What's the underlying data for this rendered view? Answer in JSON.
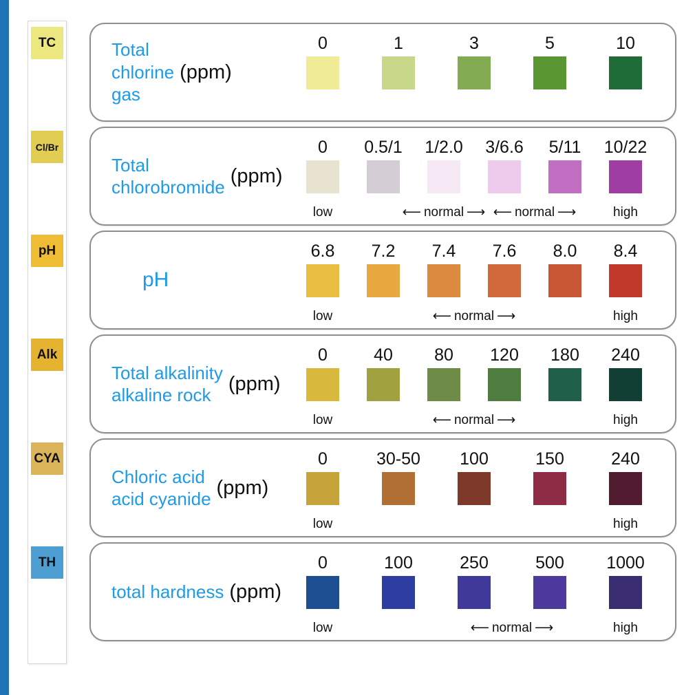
{
  "page": {
    "background": "#ffffff",
    "edge_bar_color": "#2173b8",
    "accent_text_color": "#1e9be8"
  },
  "strip": {
    "pads": [
      {
        "label": "TC",
        "color": "#ece77e"
      },
      {
        "label": "Cl/Br",
        "color": "#e0cd52"
      },
      {
        "label": "pH",
        "color": "#eebd33"
      },
      {
        "label": "Alk",
        "color": "#e6b331"
      },
      {
        "label": "CYA",
        "color": "#dbb45a"
      },
      {
        "label": "TH",
        "color": "#4d9fd3"
      }
    ]
  },
  "chart_data": {
    "type": "table",
    "panels": [
      {
        "code": "TC",
        "title_lines": [
          "Total",
          "chlorine",
          "gas"
        ],
        "unit": "(ppm)",
        "swatches": [
          {
            "value": "0",
            "color": "#f0eb97"
          },
          {
            "value": "1",
            "color": "#c8d88b"
          },
          {
            "value": "3",
            "color": "#83ab52"
          },
          {
            "value": "5",
            "color": "#5a9733"
          },
          {
            "value": "10",
            "color": "#206c38"
          }
        ],
        "footnotes": []
      },
      {
        "code": "Cl/Br",
        "title_lines": [
          "Total",
          "chlorobromide"
        ],
        "unit": "(ppm)",
        "swatches": [
          {
            "value": "0",
            "color": "#e8e3cf"
          },
          {
            "value": "0.5/1",
            "color": "#d5cdd5"
          },
          {
            "value": "1/2.0",
            "color": "#f6e9f5"
          },
          {
            "value": "3/6.6",
            "color": "#eecaec"
          },
          {
            "value": "5/11",
            "color": "#c16fc2"
          },
          {
            "value": "10/22",
            "color": "#9f3da2"
          }
        ],
        "footnotes": [
          {
            "text": "low",
            "cols": [
              0
            ],
            "arrows": false
          },
          {
            "text": "normal",
            "cols": [
              2
            ],
            "arrows": true
          },
          {
            "text": "normal",
            "cols": [
              3,
              4
            ],
            "arrows": true
          },
          {
            "text": "high",
            "cols": [
              5
            ],
            "arrows": false
          }
        ]
      },
      {
        "code": "pH",
        "title_lines": [
          "pH"
        ],
        "unit": "",
        "swatches": [
          {
            "value": "6.8",
            "color": "#e9bc42"
          },
          {
            "value": "7.2",
            "color": "#e7a93f"
          },
          {
            "value": "7.4",
            "color": "#dd8a41"
          },
          {
            "value": "7.6",
            "color": "#d06a3c"
          },
          {
            "value": "8.0",
            "color": "#c95735"
          },
          {
            "value": "8.4",
            "color": "#c0392b"
          }
        ],
        "footnotes": [
          {
            "text": "low",
            "cols": [
              0
            ],
            "arrows": false
          },
          {
            "text": "normal",
            "cols": [
              2,
              3
            ],
            "arrows": true
          },
          {
            "text": "high",
            "cols": [
              5
            ],
            "arrows": false
          }
        ]
      },
      {
        "code": "Alk",
        "title_lines": [
          "Total alkalinity",
          "alkaline rock"
        ],
        "unit": "(ppm)",
        "swatches": [
          {
            "value": "0",
            "color": "#d8b93e"
          },
          {
            "value": "40",
            "color": "#a1a13f"
          },
          {
            "value": "80",
            "color": "#6e8c48"
          },
          {
            "value": "120",
            "color": "#4f7d40"
          },
          {
            "value": "180",
            "color": "#20604b"
          },
          {
            "value": "240",
            "color": "#113f33"
          }
        ],
        "footnotes": [
          {
            "text": "low",
            "cols": [
              0
            ],
            "arrows": false
          },
          {
            "text": "normal",
            "cols": [
              2,
              3
            ],
            "arrows": true
          },
          {
            "text": "high",
            "cols": [
              5
            ],
            "arrows": false
          }
        ]
      },
      {
        "code": "CYA",
        "title_lines": [
          "Chloric acid",
          "acid cyanide"
        ],
        "unit": "(ppm)",
        "swatches": [
          {
            "value": "0",
            "color": "#c7a33c"
          },
          {
            "value": "30-50",
            "color": "#b26f33"
          },
          {
            "value": "100",
            "color": "#7e392b"
          },
          {
            "value": "150",
            "color": "#8e2b45"
          },
          {
            "value": "240",
            "color": "#521c30"
          }
        ],
        "footnotes": [
          {
            "text": "low",
            "cols": [
              0
            ],
            "arrows": false
          },
          {
            "text": "high",
            "cols": [
              4
            ],
            "arrows": false
          }
        ]
      },
      {
        "code": "TH",
        "title_lines": [
          "total hardness"
        ],
        "unit": "(ppm)",
        "swatches": [
          {
            "value": "0",
            "color": "#1d4e92"
          },
          {
            "value": "100",
            "color": "#2e3da0"
          },
          {
            "value": "250",
            "color": "#3f3a99"
          },
          {
            "value": "500",
            "color": "#4e3a9d"
          },
          {
            "value": "1000",
            "color": "#392c70"
          }
        ],
        "footnotes": [
          {
            "text": "low",
            "cols": [
              0
            ],
            "arrows": false
          },
          {
            "text": "normal",
            "cols": [
              2,
              3
            ],
            "arrows": true
          },
          {
            "text": "high",
            "cols": [
              4
            ],
            "arrows": false
          }
        ]
      }
    ]
  }
}
